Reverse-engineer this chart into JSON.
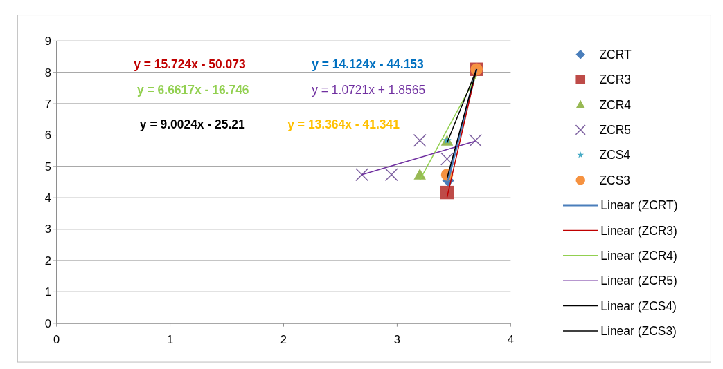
{
  "chart_data": {
    "type": "scatter",
    "xlim": [
      0,
      4
    ],
    "xticks": [
      0,
      1,
      2,
      3,
      4
    ],
    "ylim": [
      0,
      9
    ],
    "yticks": [
      0,
      1,
      2,
      3,
      4,
      5,
      6,
      7,
      8,
      9
    ],
    "grid": "y",
    "legend": "right",
    "series": [
      {
        "name": "ZCRT",
        "marker": "diamond",
        "color": "#4a7ebb",
        "x": [
          3.45
        ],
        "values": [
          4.55
        ]
      },
      {
        "name": "ZCR3",
        "marker": "square",
        "color": "#be4b48",
        "x": [
          3.44,
          3.7
        ],
        "values": [
          4.17,
          8.1
        ]
      },
      {
        "name": "ZCR4",
        "marker": "triangle",
        "color": "#98b954",
        "x": [
          3.2,
          3.44
        ],
        "values": [
          4.74,
          5.82
        ]
      },
      {
        "name": "ZCR5",
        "marker": "cross",
        "color": "#7d60a0",
        "x": [
          2.69,
          2.95,
          3.2,
          3.44,
          3.69
        ],
        "values": [
          4.74,
          4.74,
          5.83,
          5.24,
          5.83
        ]
      },
      {
        "name": "ZCS4",
        "marker": "star",
        "color": "#46aac5",
        "x": [
          3.44
        ],
        "values": [
          5.83
        ]
      },
      {
        "name": "ZCS3",
        "marker": "circle",
        "color": "#f69240",
        "x": [
          3.44,
          3.7
        ],
        "values": [
          4.74,
          8.1
        ]
      },
      {
        "name": "Linear (ZCRT)",
        "type": "line",
        "color": "#4a7ebb",
        "x": [
          3.45,
          3.7
        ],
        "values": [
          4.57,
          8.11
        ]
      },
      {
        "name": "Linear (ZCR3)",
        "type": "line",
        "color": "#c00000",
        "x": [
          3.44,
          3.7
        ],
        "values": [
          4.02,
          8.11
        ]
      },
      {
        "name": "Linear (ZCR4)",
        "type": "line",
        "color": "#92d050",
        "x": [
          3.2,
          3.7
        ],
        "values": [
          4.57,
          7.9
        ]
      },
      {
        "name": "Linear (ZCR5)",
        "type": "line",
        "color": "#7030a0",
        "x": [
          2.69,
          3.69
        ],
        "values": [
          4.74,
          5.81
        ]
      },
      {
        "name": "Linear (ZCS4)",
        "type": "line",
        "color": "#000000",
        "x": [
          3.44,
          3.7
        ],
        "values": [
          5.76,
          8.1
        ]
      },
      {
        "name": "Linear (ZCS3)",
        "type": "line",
        "color": "#000000",
        "x": [
          3.44,
          3.7
        ],
        "values": [
          4.63,
          8.1
        ]
      }
    ],
    "annotations": [
      "y = 15.724x - 50.073",
      "y = 14.124x - 44.153",
      "y = 6.6617x - 16.746",
      "y = 1.0721x + 1.8565",
      "y = 9.0024x - 25.21",
      "y = 13.364x - 41.341"
    ]
  }
}
